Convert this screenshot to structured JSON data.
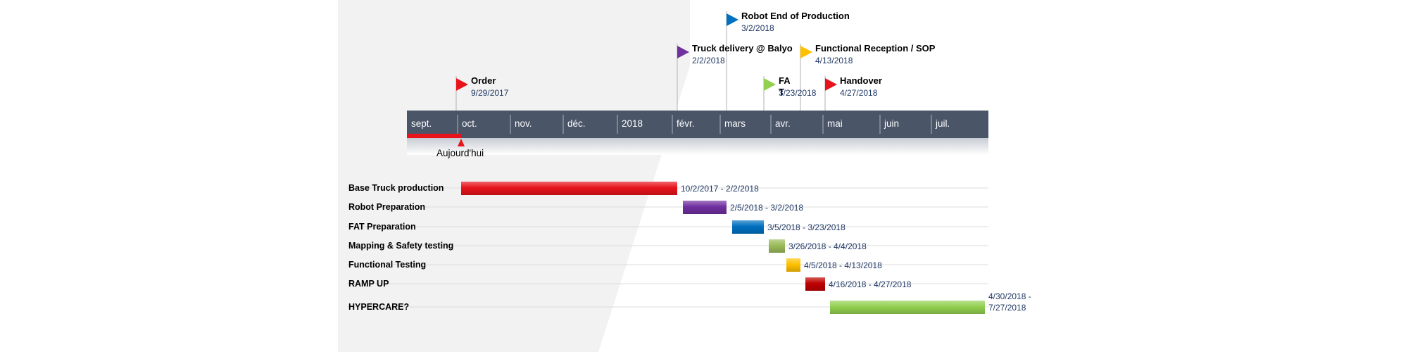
{
  "timeline": {
    "months": [
      "sept.",
      "oct.",
      "nov.",
      "déc.",
      "2018",
      "févr.",
      "mars",
      "avr.",
      "mai",
      "juin",
      "juil."
    ],
    "today_label": "Aujourd'hui",
    "colors": {
      "band": "#4a5568",
      "band_shadow": "#c7ccd3",
      "today": "#e8141c",
      "red": "#e8141c",
      "purple": "#7030a0",
      "blue": "#0070c0",
      "olive": "#9bbb59",
      "gold": "#ffc000",
      "darkred": "#c00000",
      "green": "#92d050",
      "bg_gray": "#f2f2f2"
    }
  },
  "milestones": [
    {
      "title": "Order",
      "date": "9/29/2017",
      "color": "red"
    },
    {
      "title": "Truck delivery @ Balyo",
      "date": "2/2/2018",
      "color": "purple"
    },
    {
      "title": "Robot End of Production",
      "date": "3/2/2018",
      "color": "blue"
    },
    {
      "title": "FA T",
      "date": "3/23/2018",
      "color": "green"
    },
    {
      "title": "Functional Reception / SOP",
      "date": "4/13/2018",
      "color": "gold"
    },
    {
      "title": "Handover",
      "date": "4/27/2018",
      "color": "red"
    }
  ],
  "tasks": [
    {
      "label": "Base Truck production",
      "dates": "10/2/2017 - 2/2/2018",
      "color": "red"
    },
    {
      "label": "Robot Preparation",
      "dates": "2/5/2018 - 3/2/2018",
      "color": "purple"
    },
    {
      "label": "FAT Preparation",
      "dates": "3/5/2018 - 3/23/2018",
      "color": "blue"
    },
    {
      "label": "Mapping & Safety testing",
      "dates": "3/26/2018 - 4/4/2018",
      "color": "olive"
    },
    {
      "label": "Functional Testing",
      "dates": "4/5/2018 - 4/13/2018",
      "color": "gold"
    },
    {
      "label": "RAMP UP",
      "dates": "4/16/2018 - 4/27/2018",
      "color": "darkred"
    },
    {
      "label": "HYPERCARE?",
      "dates": "4/30/2018 - 7/27/2018",
      "color": "green"
    }
  ]
}
